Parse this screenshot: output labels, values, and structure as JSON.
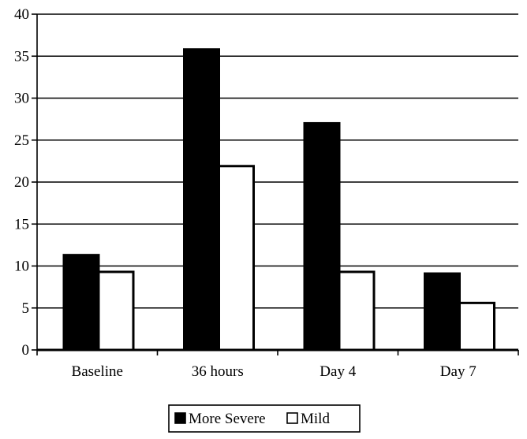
{
  "chart_data": {
    "type": "bar",
    "title": "",
    "xlabel": "",
    "ylabel": "",
    "categories": [
      "Baseline",
      "36 hours",
      "Day 4",
      "Day 7"
    ],
    "series": [
      {
        "name": "More Severe",
        "color": "#000000",
        "values": [
          11.3,
          35.8,
          27.0,
          9.1
        ]
      },
      {
        "name": "Mild",
        "color": "#ffffff",
        "values": [
          9.3,
          21.9,
          9.3,
          5.6
        ]
      }
    ],
    "ylim": [
      0,
      40
    ],
    "y_ticks": [
      0,
      5,
      10,
      15,
      20,
      25,
      30,
      35,
      40
    ],
    "grid": true,
    "legend_position": "bottom-center"
  }
}
